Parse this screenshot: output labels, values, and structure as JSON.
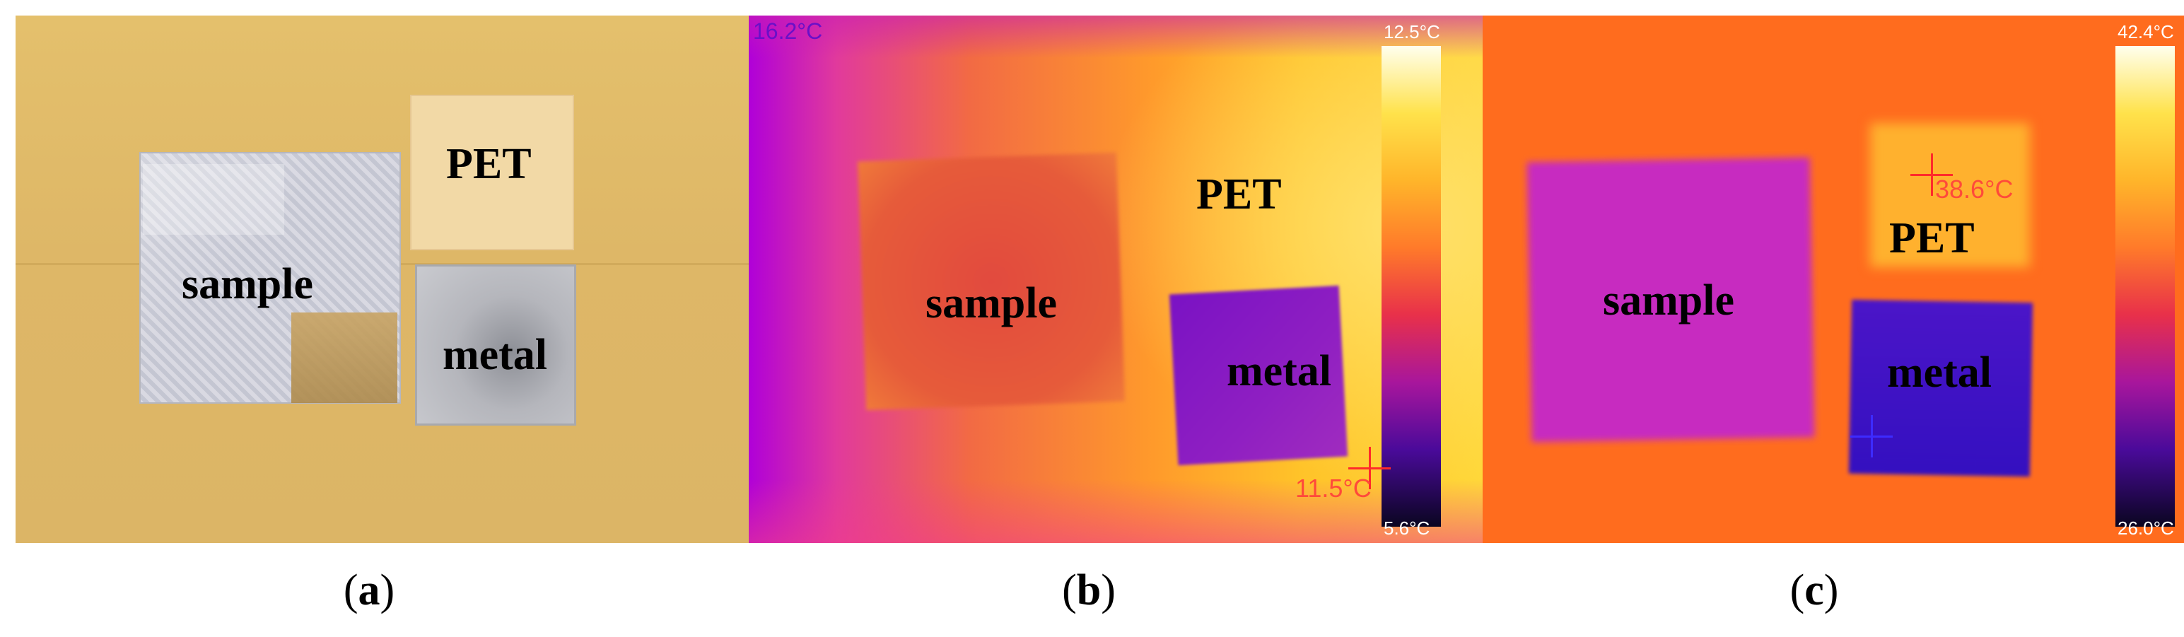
{
  "panels": {
    "a": {
      "caption_letter": "a",
      "labels": {
        "pet": "PET",
        "sample": "sample",
        "metal": "metal"
      }
    },
    "b": {
      "caption_letter": "b",
      "labels": {
        "pet": "PET",
        "sample": "sample",
        "metal": "metal"
      },
      "top_left_temp": "16.2°C",
      "colorbar_max": "12.5°C",
      "colorbar_min": "5.6°C",
      "spot_temp": "11.5°C"
    },
    "c": {
      "caption_letter": "c",
      "labels": {
        "pet": "PET",
        "sample": "sample",
        "metal": "metal"
      },
      "colorbar_max": "42.4°C",
      "colorbar_min": "26.0°C",
      "spot_temp": "38.6°C"
    }
  },
  "colors": {
    "spot_marker": "#ff2a2a",
    "cold_marker": "#3d2bff"
  }
}
